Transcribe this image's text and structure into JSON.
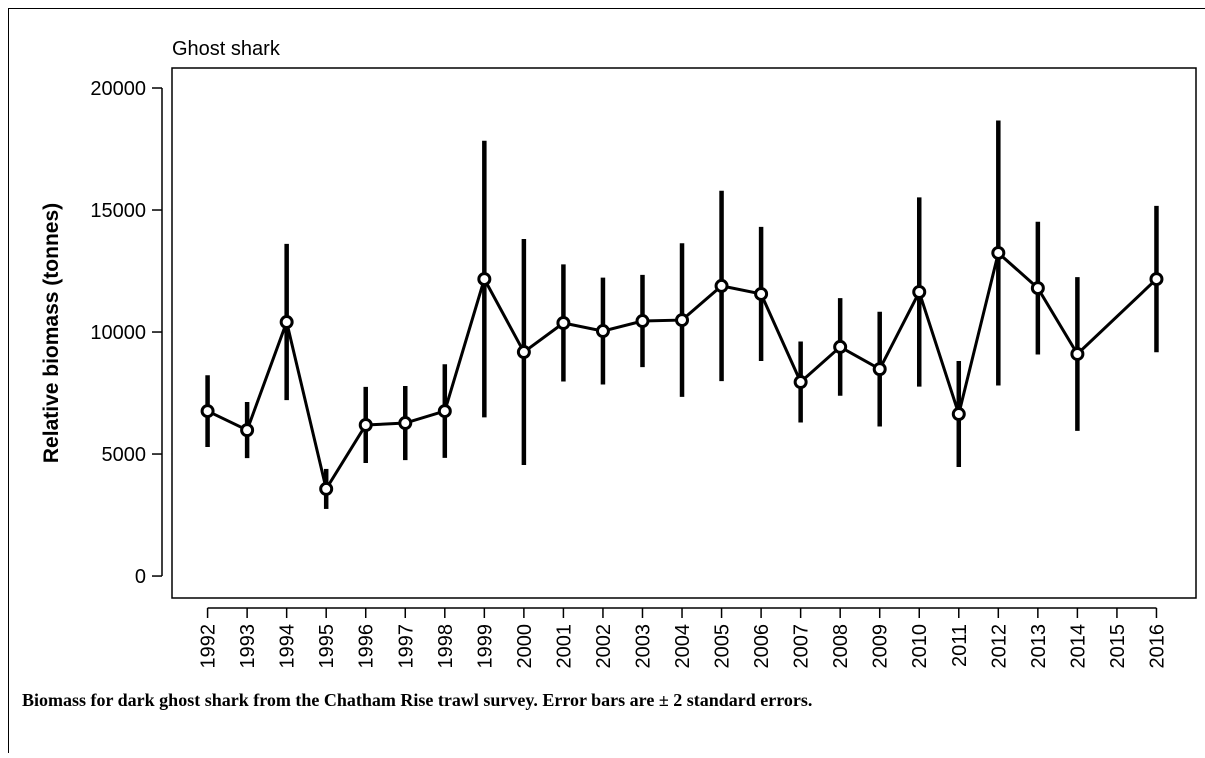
{
  "chart_data": {
    "type": "errorbar_line",
    "title": "Ghost shark",
    "ylabel": "Relative biomass (tonnes)",
    "caption": "Biomass for dark ghost shark from the Chatham Rise trawl survey. Error bars are ± 2 standard errors.",
    "x": [
      1992,
      1993,
      1994,
      1995,
      1996,
      1997,
      1998,
      1999,
      2000,
      2001,
      2002,
      2003,
      2004,
      2005,
      2006,
      2007,
      2008,
      2009,
      2010,
      2011,
      2012,
      2013,
      2014,
      2016
    ],
    "values": [
      6760,
      5980,
      10410,
      3570,
      6190,
      6270,
      6760,
      12170,
      9180,
      10370,
      10040,
      10450,
      10490,
      11890,
      11560,
      7950,
      9390,
      8480,
      11640,
      6640,
      13240,
      11800,
      9100,
      12170
    ],
    "errors": [
      1470,
      1150,
      3200,
      820,
      1560,
      1520,
      1920,
      5670,
      4630,
      2400,
      2190,
      1890,
      3150,
      3900,
      2750,
      1660,
      2000,
      2350,
      3880,
      2170,
      5430,
      2720,
      3150,
      3000
    ],
    "color": "#000000",
    "xlim": [
      1991.1,
      2017
    ],
    "xticks": [
      1992,
      1993,
      1994,
      1995,
      1996,
      1997,
      1998,
      1999,
      2000,
      2001,
      2002,
      2003,
      2004,
      2005,
      2006,
      2007,
      2008,
      2009,
      2010,
      2011,
      2012,
      2013,
      2014,
      2015,
      2016
    ],
    "ylim": [
      -900,
      20820
    ],
    "yticks": [
      0,
      5000,
      10000,
      15000,
      20000
    ]
  }
}
